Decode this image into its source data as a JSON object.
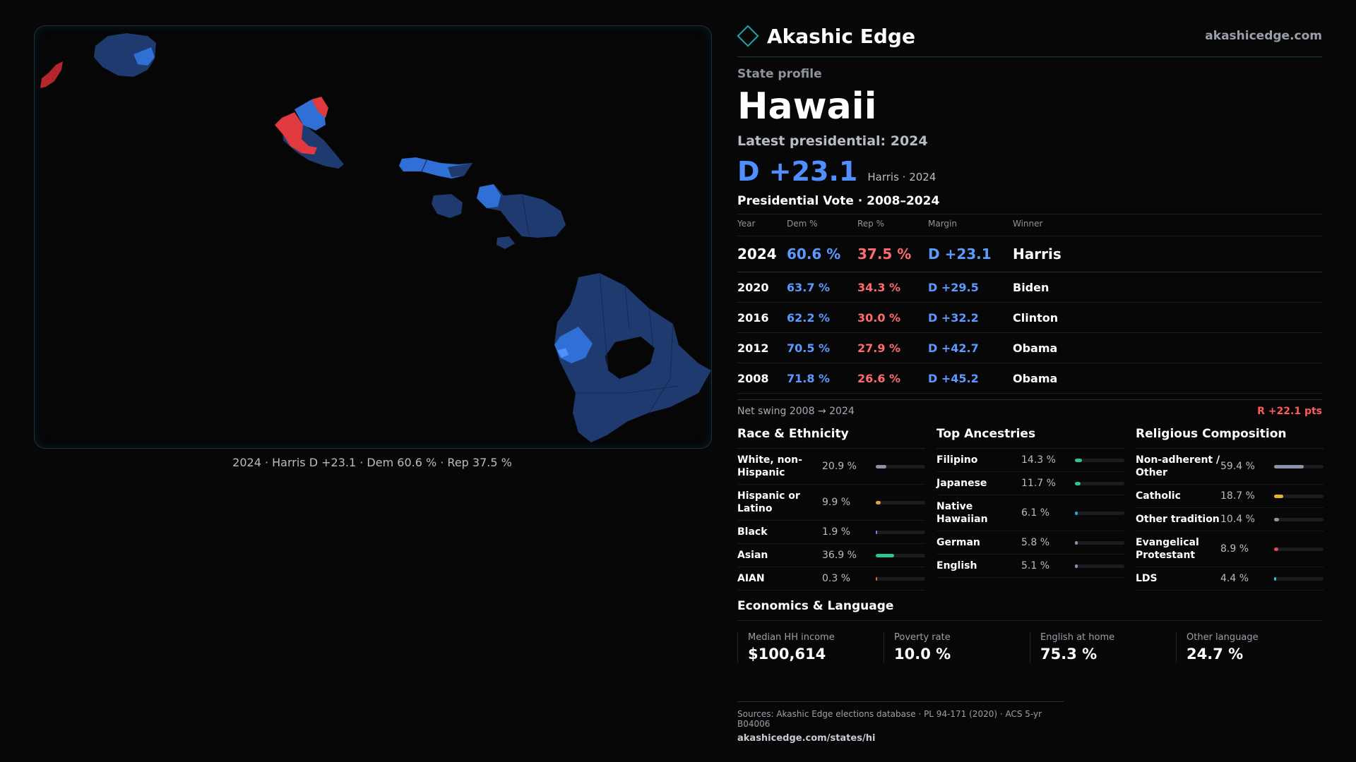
{
  "map": {
    "caption": "2024 · Harris D +23.1 · Dem 60.6 % · Rep 37.5 %",
    "colors": {
      "dem_dark": "#1e3a6e",
      "dem_mid": "#2f6fd6",
      "dem_light": "#4f8fff",
      "rep": "#e0393e",
      "rep_dark": "#b3262b"
    }
  },
  "brand": {
    "name": "Akashic Edge",
    "url": "akashicedge.com",
    "logo_icon": "diamond-outline"
  },
  "profile": {
    "kicker": "State profile",
    "state": "Hawaii",
    "latest": "Latest presidential: 2024",
    "margin": "D +23.1",
    "margin_sub": "Harris · 2024"
  },
  "votes": {
    "title": "Presidential Vote · 2008–2024",
    "headers": {
      "year": "Year",
      "dem": "Dem %",
      "rep": "Rep %",
      "margin": "Margin",
      "winner": "Winner"
    },
    "rows": [
      {
        "year": "2024",
        "dem": "60.6 %",
        "rep": "37.5 %",
        "margin": "D +23.1",
        "winner": "Harris"
      },
      {
        "year": "2020",
        "dem": "63.7 %",
        "rep": "34.3 %",
        "margin": "D +29.5",
        "winner": "Biden"
      },
      {
        "year": "2016",
        "dem": "62.2 %",
        "rep": "30.0 %",
        "margin": "D +32.2",
        "winner": "Clinton"
      },
      {
        "year": "2012",
        "dem": "70.5 %",
        "rep": "27.9 %",
        "margin": "D +42.7",
        "winner": "Obama"
      },
      {
        "year": "2008",
        "dem": "71.8 %",
        "rep": "26.6 %",
        "margin": "D +45.2",
        "winner": "Obama"
      }
    ],
    "swing_label": "Net swing 2008 → 2024",
    "swing_value": "R +22.1 pts"
  },
  "race": {
    "title": "Race & Ethnicity",
    "items": [
      {
        "label": "White, non-Hispanic",
        "value": "20.9 %",
        "pct": 20.9,
        "color": "#8a94a6"
      },
      {
        "label": "Hispanic or Latino",
        "value": "9.9 %",
        "pct": 9.9,
        "color": "#e0a23a"
      },
      {
        "label": "Black",
        "value": "1.9 %",
        "pct": 1.9,
        "color": "#8b7bff"
      },
      {
        "label": "Asian",
        "value": "36.9 %",
        "pct": 36.9,
        "color": "#2fc48e"
      },
      {
        "label": "AIAN",
        "value": "0.3 %",
        "pct": 0.3,
        "color": "#e06a3a"
      }
    ]
  },
  "ancestry": {
    "title": "Top Ancestries",
    "items": [
      {
        "label": "Filipino",
        "value": "14.3 %",
        "pct": 14.3,
        "color": "#2fc48e"
      },
      {
        "label": "Japanese",
        "value": "11.7 %",
        "pct": 11.7,
        "color": "#2fc48e"
      },
      {
        "label": "Native Hawaiian",
        "value": "6.1 %",
        "pct": 6.1,
        "color": "#2f9fd6"
      },
      {
        "label": "German",
        "value": "5.8 %",
        "pct": 5.8,
        "color": "#8a94a6"
      },
      {
        "label": "English",
        "value": "5.1 %",
        "pct": 5.1,
        "color": "#8a94a6"
      }
    ]
  },
  "religion": {
    "title": "Religious Composition",
    "items": [
      {
        "label": "Non-adherent / Other",
        "value": "59.4 %",
        "pct": 59.4,
        "color": "#8a94a6"
      },
      {
        "label": "Catholic",
        "value": "18.7 %",
        "pct": 18.7,
        "color": "#e8b42a"
      },
      {
        "label": "Other tradition",
        "value": "10.4 %",
        "pct": 10.4,
        "color": "#8a94a6"
      },
      {
        "label": "Evangelical Protestant",
        "value": "8.9 %",
        "pct": 8.9,
        "color": "#e04a5a"
      },
      {
        "label": "LDS",
        "value": "4.4 %",
        "pct": 4.4,
        "color": "#2fc4c4"
      }
    ]
  },
  "economics": {
    "title": "Economics & Language",
    "items": [
      {
        "label": "Median HH income",
        "value": "$100,614"
      },
      {
        "label": "Poverty rate",
        "value": "10.0 %"
      },
      {
        "label": "English at home",
        "value": "75.3 %"
      },
      {
        "label": "Other language",
        "value": "24.7 %"
      }
    ]
  },
  "sources": {
    "text": "Sources: Akashic Edge elections database · PL 94-171 (2020) · ACS 5-yr B04006",
    "url": "akashicedge.com/states/hi"
  }
}
